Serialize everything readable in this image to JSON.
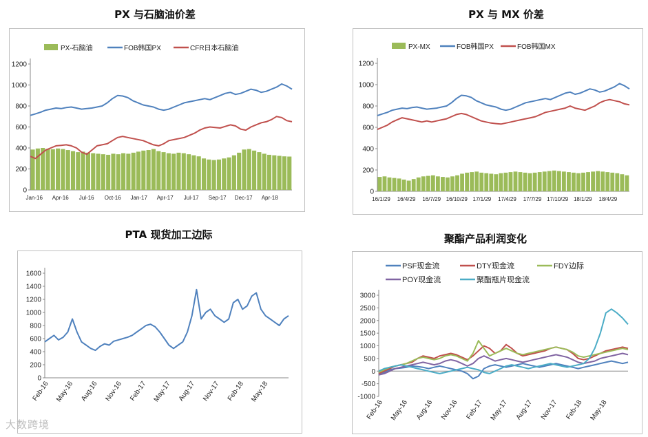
{
  "titles": {
    "px_naphtha": "PX 与石脑油价差",
    "px_mx": "PX 与 MX 价差",
    "pta": "PTA 现货加工边际",
    "polyester": "聚酯产品利润变化"
  },
  "watermark": "大数跨境",
  "chart_data": [
    {
      "type": "bar+line",
      "title": "PX 与石脑油价差",
      "ylim": [
        0,
        1200
      ],
      "yticks": [
        0,
        200,
        400,
        600,
        800,
        1000,
        1200
      ],
      "xticks": [
        "Jan-16",
        "Apr-16",
        "Jul-16",
        "Oct-16",
        "Jan-17",
        "Apr-17",
        "Jul-17",
        "Sep-17",
        "Dec-17",
        "Apr-18"
      ],
      "legend": "top",
      "series": [
        {
          "name": "PX-石脑油",
          "kind": "bar",
          "color": "#9bbb59",
          "values": [
            385,
            395,
            400,
            392,
            388,
            395,
            390,
            380,
            370,
            360,
            365,
            355,
            350,
            345,
            340,
            335,
            345,
            340,
            350,
            345,
            355,
            365,
            375,
            380,
            390,
            370,
            360,
            350,
            345,
            355,
            350,
            340,
            330,
            320,
            300,
            290,
            285,
            290,
            300,
            310,
            330,
            355,
            385,
            390,
            375,
            360,
            345,
            335,
            330,
            325,
            320,
            318
          ]
        },
        {
          "name": "FOB韩国PX",
          "kind": "line",
          "color": "#4f81bd",
          "values": [
            710,
            725,
            740,
            760,
            770,
            780,
            775,
            785,
            790,
            780,
            770,
            775,
            780,
            790,
            800,
            830,
            870,
            900,
            895,
            880,
            850,
            830,
            810,
            800,
            790,
            770,
            760,
            770,
            790,
            810,
            830,
            840,
            850,
            860,
            870,
            860,
            880,
            900,
            920,
            930,
            910,
            920,
            940,
            960,
            950,
            930,
            940,
            960,
            980,
            1010,
            990,
            960
          ]
        },
        {
          "name": "CFR日本石脑油",
          "kind": "line",
          "color": "#c0504d",
          "values": [
            320,
            300,
            340,
            380,
            400,
            420,
            425,
            430,
            420,
            400,
            360,
            340,
            380,
            420,
            430,
            440,
            470,
            500,
            510,
            500,
            490,
            480,
            470,
            450,
            430,
            420,
            440,
            470,
            480,
            490,
            500,
            520,
            540,
            570,
            590,
            600,
            595,
            590,
            605,
            620,
            610,
            580,
            570,
            600,
            620,
            640,
            650,
            670,
            700,
            690,
            660,
            650
          ]
        }
      ]
    },
    {
      "type": "bar+line",
      "title": "PX 与 MX 价差",
      "ylim": [
        0,
        1200
      ],
      "yticks": [
        0,
        200,
        400,
        600,
        800,
        1000,
        1200
      ],
      "xticks": [
        "16/1/29",
        "16/4/29",
        "16/7/29",
        "16/10/29",
        "17/1/29",
        "17/4/29",
        "17/7/29",
        "17/10/29",
        "18/1/29",
        "18/4/29"
      ],
      "legend": "top",
      "series": [
        {
          "name": "PX-MX",
          "kind": "bar",
          "color": "#9bbb59",
          "values": [
            135,
            140,
            130,
            125,
            120,
            110,
            100,
            115,
            130,
            140,
            145,
            150,
            140,
            135,
            130,
            140,
            150,
            165,
            175,
            180,
            185,
            175,
            170,
            165,
            160,
            170,
            175,
            180,
            185,
            180,
            175,
            170,
            175,
            180,
            185,
            190,
            195,
            190,
            185,
            180,
            175,
            170,
            175,
            180,
            185,
            190,
            185,
            180,
            175,
            170,
            160,
            150
          ]
        },
        {
          "name": "FOB韩国PX",
          "kind": "line",
          "color": "#4f81bd",
          "values": [
            710,
            725,
            740,
            760,
            770,
            780,
            775,
            785,
            790,
            780,
            770,
            775,
            780,
            790,
            800,
            830,
            870,
            900,
            895,
            880,
            850,
            830,
            810,
            800,
            790,
            770,
            760,
            770,
            790,
            810,
            830,
            840,
            850,
            860,
            870,
            860,
            880,
            900,
            920,
            930,
            910,
            920,
            940,
            960,
            950,
            930,
            940,
            960,
            980,
            1010,
            990,
            960
          ]
        },
        {
          "name": "FOB韩国MX",
          "kind": "line",
          "color": "#c0504d",
          "values": [
            580,
            600,
            620,
            650,
            670,
            690,
            680,
            670,
            660,
            650,
            660,
            650,
            660,
            670,
            680,
            700,
            720,
            730,
            720,
            700,
            680,
            660,
            650,
            640,
            635,
            630,
            640,
            650,
            660,
            670,
            680,
            690,
            700,
            720,
            740,
            750,
            760,
            770,
            780,
            800,
            780,
            770,
            760,
            780,
            800,
            830,
            850,
            860,
            850,
            840,
            820,
            810
          ]
        }
      ]
    },
    {
      "type": "line",
      "title": "PTA 现货加工边际",
      "ylim": [
        0,
        1600
      ],
      "yticks": [
        0,
        200,
        400,
        600,
        800,
        1000,
        1200,
        1400,
        1600
      ],
      "xticks": [
        "Feb-16",
        "May-16",
        "Aug-16",
        "Nov-16",
        "Feb-17",
        "May-17",
        "Aug-17",
        "Nov-17",
        "Feb-18",
        "May-18"
      ],
      "series": [
        {
          "name": "",
          "color": "#4f81bd",
          "values": [
            550,
            600,
            650,
            580,
            620,
            700,
            900,
            700,
            550,
            500,
            450,
            420,
            480,
            520,
            500,
            560,
            580,
            600,
            620,
            650,
            700,
            750,
            800,
            820,
            780,
            700,
            600,
            500,
            450,
            500,
            550,
            700,
            950,
            1350,
            900,
            1000,
            1050,
            950,
            900,
            850,
            900,
            1150,
            1200,
            1050,
            1100,
            1250,
            1300,
            1050,
            950,
            900,
            850,
            800,
            900,
            950
          ]
        }
      ]
    },
    {
      "type": "line",
      "title": "聚酯产品利润变化",
      "ylim": [
        -1000,
        3000
      ],
      "yticks": [
        -1000,
        -500,
        0,
        500,
        1000,
        1500,
        2000,
        2500,
        3000
      ],
      "xticks": [
        "Feb-16",
        "May-16",
        "Aug-16",
        "Nov-16",
        "Feb-17",
        "May-17",
        "Aug-17",
        "Nov-17",
        "Feb-18",
        "May-18"
      ],
      "legend": "top",
      "series": [
        {
          "name": "PSF现金流",
          "color": "#4f81bd",
          "values": [
            -150,
            -50,
            50,
            100,
            120,
            150,
            200,
            180,
            150,
            100,
            150,
            200,
            150,
            100,
            50,
            0,
            -100,
            -300,
            -200,
            100,
            200,
            250,
            200,
            150,
            200,
            250,
            300,
            250,
            200,
            150,
            200,
            250,
            300,
            250,
            200,
            150,
            100,
            150,
            200,
            250,
            300,
            350,
            400,
            350,
            300,
            350
          ]
        },
        {
          "name": "DTY现金流",
          "color": "#c0504d",
          "values": [
            -100,
            0,
            100,
            200,
            250,
            300,
            350,
            500,
            600,
            550,
            500,
            600,
            650,
            700,
            650,
            550,
            450,
            600,
            800,
            1000,
            900,
            700,
            800,
            1050,
            900,
            700,
            600,
            650,
            700,
            750,
            800,
            900,
            950,
            900,
            850,
            700,
            500,
            450,
            500,
            600,
            700,
            800,
            850,
            900,
            950,
            900
          ]
        },
        {
          "name": "FDY边际",
          "color": "#9bbb59",
          "values": [
            -50,
            50,
            150,
            200,
            250,
            300,
            400,
            500,
            550,
            500,
            450,
            500,
            600,
            650,
            600,
            500,
            400,
            700,
            1200,
            900,
            600,
            700,
            800,
            900,
            800,
            700,
            650,
            700,
            750,
            800,
            850,
            900,
            950,
            900,
            850,
            750,
            600,
            550,
            600,
            650,
            700,
            750,
            800,
            850,
            900,
            850
          ]
        },
        {
          "name": "POY现金流",
          "color": "#8064a2",
          "values": [
            -150,
            -100,
            0,
            100,
            150,
            200,
            250,
            300,
            350,
            300,
            250,
            300,
            400,
            450,
            400,
            300,
            200,
            300,
            500,
            600,
            500,
            400,
            450,
            500,
            450,
            400,
            350,
            400,
            450,
            500,
            550,
            600,
            650,
            600,
            550,
            450,
            350,
            300,
            350,
            400,
            500,
            550,
            600,
            650,
            700,
            650
          ]
        },
        {
          "name": "聚酯瓶片现金流",
          "color": "#4bacc6",
          "values": [
            0,
            100,
            150,
            200,
            250,
            200,
            150,
            100,
            50,
            0,
            -50,
            -100,
            -50,
            0,
            50,
            100,
            150,
            100,
            50,
            -50,
            -100,
            0,
            100,
            200,
            250,
            200,
            150,
            100,
            150,
            200,
            250,
            300,
            250,
            200,
            150,
            200,
            250,
            300,
            500,
            900,
            1500,
            2300,
            2450,
            2300,
            2100,
            1850
          ]
        }
      ]
    }
  ]
}
